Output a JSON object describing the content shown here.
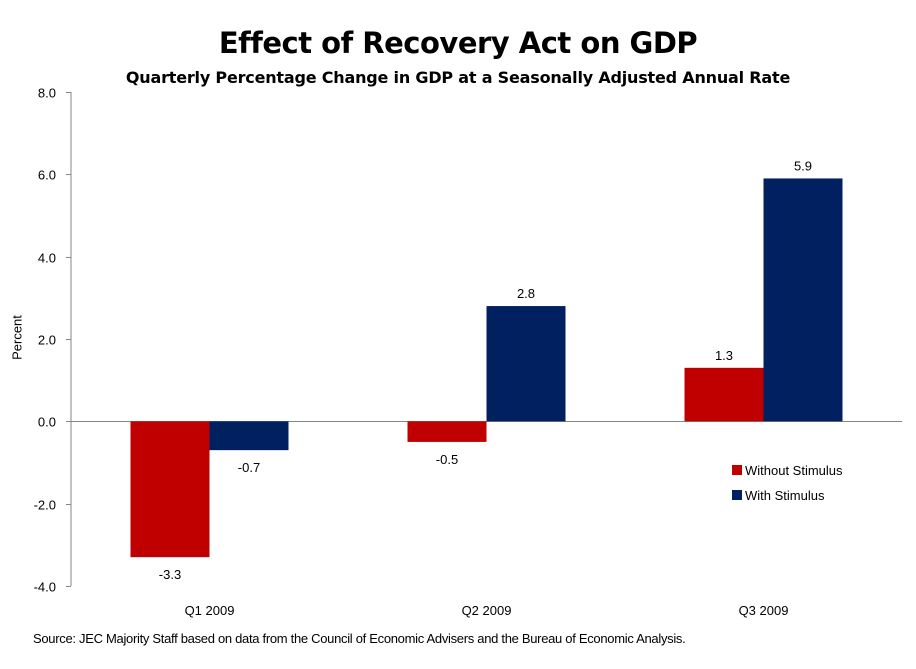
{
  "chart_data": {
    "type": "bar",
    "title": "Effect of Recovery Act on GDP",
    "subtitle": "Quarterly Percentage Change in GDP at a Seasonally Adjusted Annual Rate",
    "xlabel": "",
    "ylabel": "Percent",
    "ylim": [
      -4.0,
      8.0
    ],
    "yticks": [
      8.0,
      6.0,
      4.0,
      2.0,
      0.0,
      -2.0,
      -4.0
    ],
    "ytick_labels": [
      "8.0",
      "6.0",
      "4.0",
      "2.0",
      "0.0",
      "-2.0",
      "-4.0"
    ],
    "categories": [
      "Q1 2009",
      "Q2 2009",
      "Q3 2009"
    ],
    "series": [
      {
        "name": "Without Stimulus",
        "color": "#C00000",
        "values": [
          -3.3,
          -0.5,
          1.3
        ],
        "labels": [
          "-3.3",
          "-0.5",
          "1.3"
        ]
      },
      {
        "name": "With Stimulus",
        "color": "#002060",
        "values": [
          -0.7,
          2.8,
          5.9
        ],
        "labels": [
          "-0.7",
          "2.8",
          "5.9"
        ]
      }
    ],
    "grid": false,
    "legend_position": "right",
    "source": "Source: JEC Majority Staff based on data from the Council of Economic Advisers and the Bureau of Economic Analysis."
  }
}
